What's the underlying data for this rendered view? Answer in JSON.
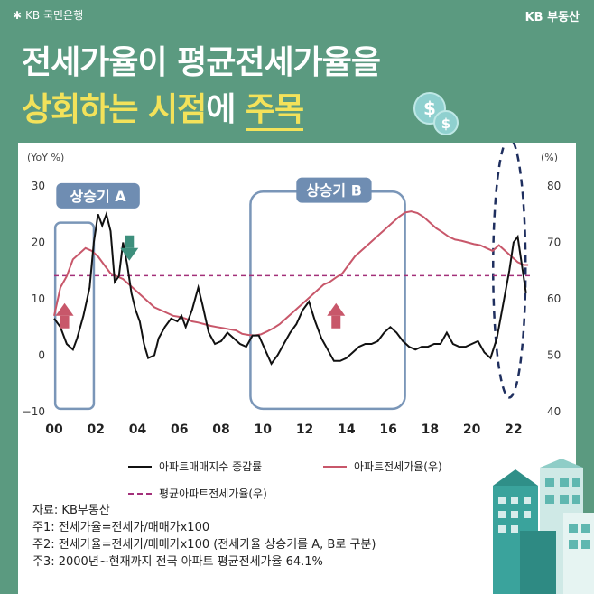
{
  "brand": {
    "left": "KB 국민은행",
    "right": "KB 부동산"
  },
  "title": {
    "line1": "전세가율이 평균전세가율을",
    "line2_a": "상회하는 시점",
    "line2_b": "에 ",
    "line2_c": "주목"
  },
  "colors": {
    "background": "#5b9a80",
    "black_line": "#111111",
    "red_line": "#c8576a",
    "avg_line": "#a3307a",
    "box": "#7a96b8",
    "up_arrow": "#c8576a",
    "down_arrow": "#3d8f7c",
    "label_bg": "#6f8db2"
  },
  "chart_data": {
    "type": "line",
    "left_axis_label": "(YoY %)",
    "right_axis_label": "(%)",
    "x_ticks": [
      "00",
      "02",
      "04",
      "06",
      "08",
      "10",
      "12",
      "14",
      "16",
      "18",
      "20",
      "22"
    ],
    "left_ticks": [
      "30",
      "20",
      "10",
      "0",
      "−10"
    ],
    "right_ticks": [
      "80",
      "70",
      "60",
      "50",
      "40"
    ],
    "ylim_left": [
      -10,
      30
    ],
    "ylim_right": [
      40,
      80
    ],
    "xlim": [
      2000,
      2023
    ],
    "legend": [
      "아파트매매지수 증감률",
      "아파트전세가율(우)",
      "평균아파트전세가율(우)"
    ],
    "average_jeonse_ratio": 64.1,
    "series": [
      {
        "name": "아파트매매지수 증감률",
        "x": [
          2000.0,
          2000.3,
          2000.6,
          2000.9,
          2001.1,
          2001.4,
          2001.7,
          2001.9,
          2002.1,
          2002.3,
          2002.5,
          2002.7,
          2002.9,
          2003.1,
          2003.3,
          2003.5,
          2003.7,
          2003.9,
          2004.1,
          2004.3,
          2004.5,
          2004.8,
          2005.0,
          2005.3,
          2005.6,
          2005.9,
          2006.1,
          2006.3,
          2006.6,
          2006.9,
          2007.1,
          2007.4,
          2007.7,
          2008.0,
          2008.3,
          2008.6,
          2008.9,
          2009.2,
          2009.5,
          2009.8,
          2010.1,
          2010.4,
          2010.7,
          2011.0,
          2011.3,
          2011.6,
          2011.9,
          2012.2,
          2012.5,
          2012.8,
          2013.1,
          2013.4,
          2013.7,
          2014.0,
          2014.3,
          2014.6,
          2014.9,
          2015.2,
          2015.5,
          2015.8,
          2016.1,
          2016.4,
          2016.7,
          2017.0,
          2017.3,
          2017.6,
          2017.9,
          2018.2,
          2018.5,
          2018.8,
          2019.1,
          2019.4,
          2019.7,
          2020.0,
          2020.3,
          2020.6,
          2020.9,
          2021.2,
          2021.5,
          2021.8,
          2022.0,
          2022.2,
          2022.4,
          2022.6
        ],
        "values": [
          6.5,
          5.0,
          2.0,
          1.0,
          3.0,
          7.0,
          12.0,
          20.0,
          25.0,
          23.0,
          25.0,
          22.0,
          13.0,
          14.0,
          20.0,
          16.0,
          11.0,
          8.0,
          6.0,
          2.0,
          -0.5,
          0.0,
          3.0,
          5.0,
          6.5,
          6.0,
          7.0,
          5.0,
          8.0,
          12.0,
          9.0,
          4.0,
          2.0,
          2.5,
          4.0,
          3.0,
          2.0,
          1.5,
          3.5,
          3.5,
          1.0,
          -1.5,
          0.0,
          2.0,
          4.0,
          5.5,
          8.0,
          9.5,
          6.0,
          3.0,
          1.0,
          -1.0,
          -1.0,
          -0.5,
          0.5,
          1.5,
          2.0,
          2.0,
          2.5,
          4.0,
          5.0,
          4.0,
          2.5,
          1.5,
          1.0,
          1.5,
          1.5,
          2.0,
          2.0,
          4.0,
          2.0,
          1.5,
          1.5,
          2.0,
          2.5,
          0.5,
          -0.5,
          3.0,
          9.0,
          15.0,
          20.0,
          21.0,
          16.0,
          11.0
        ]
      },
      {
        "name": "아파트전세가율(우)",
        "x": [
          2000.0,
          2000.3,
          2000.6,
          2000.9,
          2001.2,
          2001.5,
          2001.8,
          2002.1,
          2002.4,
          2002.7,
          2003.0,
          2003.3,
          2003.6,
          2003.9,
          2004.2,
          2004.5,
          2004.8,
          2005.1,
          2005.4,
          2005.7,
          2006.0,
          2006.3,
          2006.6,
          2006.9,
          2007.2,
          2007.5,
          2007.8,
          2008.1,
          2008.4,
          2008.7,
          2009.0,
          2009.3,
          2009.6,
          2009.9,
          2010.2,
          2010.5,
          2010.8,
          2011.1,
          2011.4,
          2011.7,
          2012.0,
          2012.3,
          2012.6,
          2012.9,
          2013.2,
          2013.5,
          2013.8,
          2014.1,
          2014.4,
          2014.7,
          2015.0,
          2015.3,
          2015.6,
          2015.9,
          2016.2,
          2016.5,
          2016.8,
          2017.1,
          2017.4,
          2017.7,
          2018.0,
          2018.3,
          2018.6,
          2018.9,
          2019.2,
          2019.5,
          2019.8,
          2020.1,
          2020.4,
          2020.7,
          2021.0,
          2021.3,
          2021.6,
          2021.9,
          2022.2,
          2022.5,
          2022.7
        ],
        "values": [
          57.0,
          62.0,
          64.0,
          67.0,
          68.0,
          69.0,
          68.5,
          67.5,
          66.0,
          64.5,
          64.0,
          63.5,
          62.5,
          61.5,
          60.5,
          59.5,
          58.5,
          58.0,
          57.5,
          57.0,
          56.8,
          56.5,
          56.0,
          55.8,
          55.5,
          55.2,
          55.0,
          54.8,
          54.6,
          54.4,
          53.8,
          53.6,
          53.5,
          53.7,
          54.2,
          54.8,
          55.5,
          56.5,
          57.5,
          58.5,
          59.5,
          60.5,
          61.5,
          62.5,
          63.0,
          63.8,
          64.5,
          66.0,
          67.5,
          68.5,
          69.5,
          70.5,
          71.5,
          72.5,
          73.5,
          74.5,
          75.3,
          75.5,
          75.2,
          74.5,
          73.5,
          72.5,
          71.8,
          71.0,
          70.5,
          70.3,
          70.0,
          69.7,
          69.5,
          69.0,
          68.5,
          69.5,
          68.5,
          67.5,
          66.5,
          66.0,
          66.0
        ]
      }
    ]
  },
  "annotations": {
    "box_a": "상승기 A",
    "box_b": "상승기 B"
  },
  "notes": [
    "자료: KB부동산",
    "주1: 전세가율=전세가/매매가x100",
    "주2: 전세가율=전세가/매매가x100 (전세가율 상승기를 A, B로 구분)",
    "주3: 2000년~현재까지 전국 아파트 평균전세가율 64.1%"
  ]
}
